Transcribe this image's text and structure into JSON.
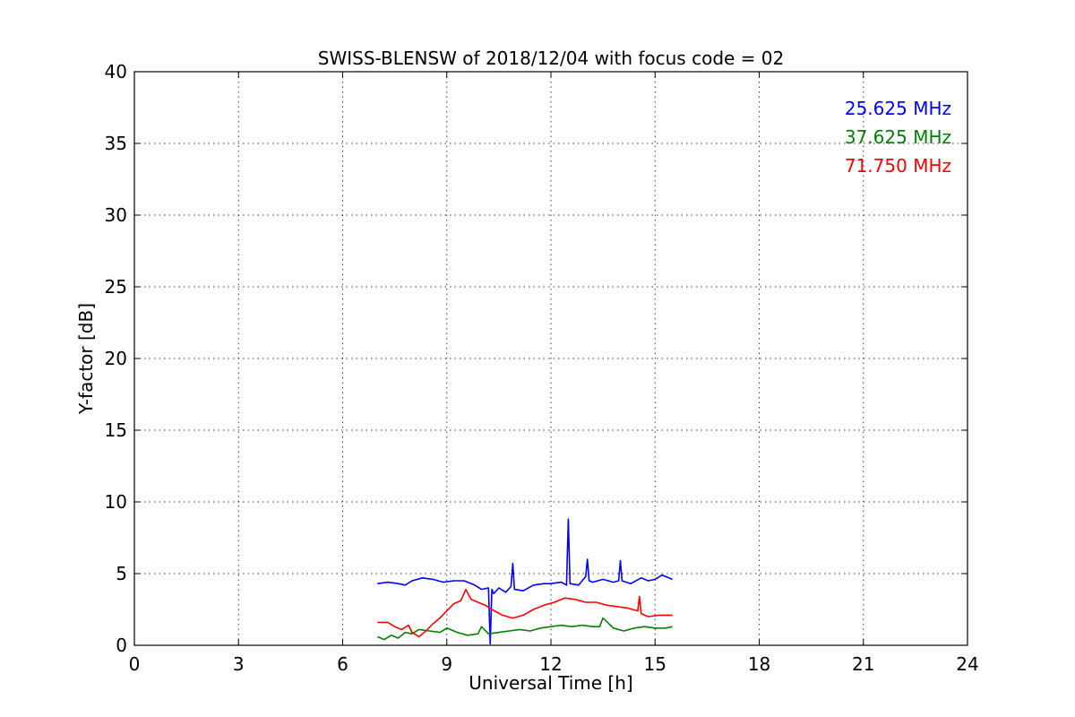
{
  "chart_data": {
    "type": "line",
    "title": "SWISS-BLENSW of 2018/12/04 with focus code = 02",
    "xlabel": "Universal Time [h]",
    "ylabel": "Y-factor [dB]",
    "xlim": [
      0,
      24
    ],
    "ylim": [
      0,
      40
    ],
    "xticks": [
      0,
      3,
      6,
      9,
      12,
      15,
      18,
      21,
      24
    ],
    "yticks": [
      0,
      5,
      10,
      15,
      20,
      25,
      30,
      35,
      40
    ],
    "grid": true,
    "legend_position": "top-right",
    "series": [
      {
        "name": "25.625 MHz",
        "color": "#0000ff",
        "x": [
          7.0,
          7.3,
          7.6,
          7.8,
          8.0,
          8.3,
          8.6,
          8.9,
          9.2,
          9.5,
          9.8,
          10.0,
          10.2,
          10.25,
          10.3,
          10.35,
          10.5,
          10.7,
          10.85,
          10.9,
          10.95,
          11.2,
          11.5,
          11.8,
          12.0,
          12.3,
          12.45,
          12.5,
          12.55,
          12.8,
          13.0,
          13.05,
          13.1,
          13.2,
          13.5,
          13.8,
          13.95,
          14.0,
          14.05,
          14.3,
          14.6,
          14.8,
          15.0,
          15.2,
          15.5
        ],
        "y": [
          4.3,
          4.4,
          4.3,
          4.2,
          4.5,
          4.7,
          4.6,
          4.4,
          4.5,
          4.5,
          4.2,
          3.9,
          4.0,
          0.1,
          3.9,
          3.6,
          4.0,
          3.7,
          4.1,
          5.7,
          3.9,
          3.8,
          4.2,
          4.3,
          4.3,
          4.4,
          4.2,
          8.8,
          4.3,
          4.2,
          4.8,
          6.0,
          4.5,
          4.4,
          4.6,
          4.4,
          4.5,
          5.9,
          4.5,
          4.3,
          4.7,
          4.5,
          4.6,
          4.9,
          4.6
        ]
      },
      {
        "name": "37.625 MHz",
        "color": "#008000",
        "x": [
          7.0,
          7.2,
          7.4,
          7.6,
          7.8,
          8.0,
          8.2,
          8.5,
          8.8,
          9.0,
          9.3,
          9.6,
          9.9,
          10.0,
          10.2,
          10.5,
          10.8,
          11.1,
          11.4,
          11.7,
          12.0,
          12.3,
          12.6,
          12.9,
          13.2,
          13.4,
          13.5,
          13.8,
          14.1,
          14.4,
          14.7,
          15.0,
          15.3,
          15.5
        ],
        "y": [
          0.6,
          0.4,
          0.7,
          0.5,
          0.9,
          0.8,
          1.1,
          1.0,
          0.9,
          1.2,
          0.9,
          0.7,
          0.8,
          1.3,
          0.8,
          0.9,
          1.0,
          1.1,
          1.0,
          1.2,
          1.3,
          1.4,
          1.3,
          1.4,
          1.3,
          1.3,
          1.9,
          1.2,
          1.0,
          1.2,
          1.3,
          1.2,
          1.2,
          1.3
        ]
      },
      {
        "name": "71.750 MHz",
        "color": "#ff0000",
        "x": [
          7.0,
          7.3,
          7.5,
          7.7,
          7.9,
          8.0,
          8.2,
          8.4,
          8.6,
          8.8,
          9.0,
          9.2,
          9.4,
          9.55,
          9.7,
          9.9,
          10.1,
          10.3,
          10.6,
          10.9,
          11.2,
          11.5,
          11.8,
          12.1,
          12.4,
          12.7,
          13.0,
          13.3,
          13.6,
          13.9,
          14.2,
          14.5,
          14.55,
          14.6,
          14.8,
          15.1,
          15.5
        ],
        "y": [
          1.6,
          1.6,
          1.3,
          1.1,
          1.4,
          0.9,
          0.6,
          1.0,
          1.5,
          1.9,
          2.4,
          2.9,
          3.1,
          3.9,
          3.2,
          3.0,
          2.8,
          2.5,
          2.1,
          1.9,
          2.1,
          2.5,
          2.8,
          3.0,
          3.3,
          3.2,
          3.0,
          3.0,
          2.8,
          2.7,
          2.6,
          2.4,
          3.4,
          2.2,
          2.0,
          2.1,
          2.1
        ]
      }
    ]
  }
}
